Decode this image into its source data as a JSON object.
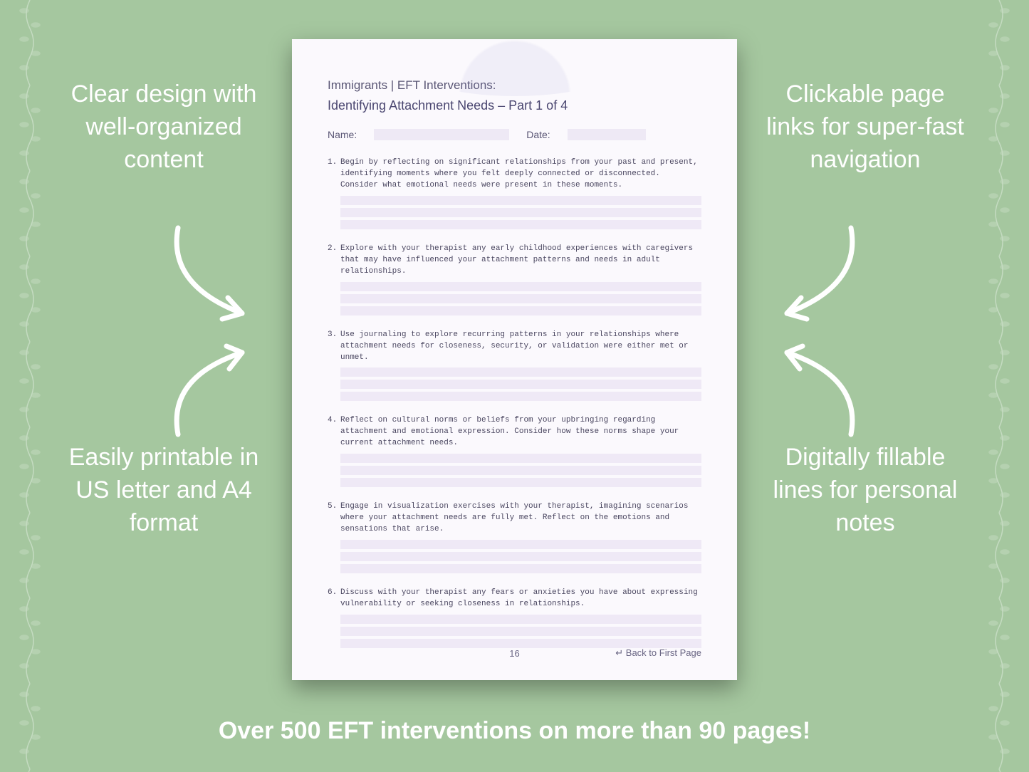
{
  "colors": {
    "background": "#a5c79f",
    "callout_text": "#ffffff",
    "page_bg": "#fbf9fd",
    "page_text": "#4a4660",
    "fill_line": "#efe9f6",
    "blank_field": "#eee9f5",
    "arrow": "#ffffff"
  },
  "callouts": {
    "top_left": "Clear design with well-organized content",
    "top_right": "Clickable page links for super-fast navigation",
    "bottom_left": "Easily printable in US letter and A4 format",
    "bottom_right": "Digitally fillable lines for personal notes"
  },
  "banner": "Over 500 EFT interventions on more than 90 pages!",
  "page": {
    "header_line1": "Immigrants | EFT Interventions:",
    "header_line2": "Identifying Attachment Needs – Part 1 of 4",
    "meta": {
      "name_label": "Name:",
      "date_label": "Date:"
    },
    "questions": [
      {
        "n": "1.",
        "text": "Begin by reflecting on significant relationships from your past and present, identifying moments where you felt deeply connected or disconnected. Consider what emotional needs were present in these moments.",
        "lines": 3
      },
      {
        "n": "2.",
        "text": "Explore with your therapist any early childhood experiences with caregivers that may have influenced your attachment patterns and needs in adult relationships.",
        "lines": 3
      },
      {
        "n": "3.",
        "text": "Use journaling to explore recurring patterns in your relationships where attachment needs for closeness, security, or validation were either met or unmet.",
        "lines": 3
      },
      {
        "n": "4.",
        "text": "Reflect on cultural norms or beliefs from your upbringing regarding attachment and emotional expression. Consider how these norms shape your current attachment needs.",
        "lines": 3
      },
      {
        "n": "5.",
        "text": "Engage in visualization exercises with your therapist, imagining scenarios where your attachment needs are fully met. Reflect on the emotions and sensations that arise.",
        "lines": 3
      },
      {
        "n": "6.",
        "text": "Discuss with your therapist any fears or anxieties you have about expressing vulnerability or seeking closeness in relationships.",
        "lines": 3
      }
    ],
    "page_number": "16",
    "back_link": "↵ Back to First Page"
  }
}
